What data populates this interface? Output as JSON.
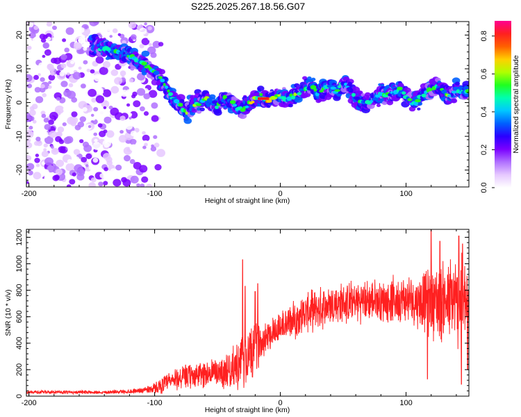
{
  "title": "S225.2025.267.18.56.G07",
  "chart_data": [
    {
      "type": "heatmap",
      "xlabel": "Height of straight line (km)",
      "ylabel": "Frequency (Hz)",
      "xlim": [
        -202,
        150
      ],
      "ylim": [
        -25,
        24
      ],
      "xticks": [
        -200,
        -100,
        0,
        100
      ],
      "yticks": [
        -20,
        -10,
        0,
        10,
        20
      ],
      "colorbar": {
        "label": "Normalized spectral amplitude",
        "range": [
          0,
          0.88
        ],
        "ticks": [
          "0.0",
          "0.2",
          "0.4",
          "0.6",
          "0.8"
        ],
        "colors": [
          "#ffffff",
          "#e6c8ff",
          "#b070ff",
          "#7a00ff",
          "#2a00ff",
          "#0060ff",
          "#00c8ff",
          "#00ffb0",
          "#20ff20",
          "#b0ff00",
          "#ffd000",
          "#ff6000",
          "#ff2020",
          "#ff0090"
        ]
      },
      "ridge": {
        "x": [
          -150,
          -140,
          -130,
          -120,
          -110,
          -100,
          -95,
          -90,
          -85,
          -80,
          -75,
          -70,
          -65,
          -60,
          -55,
          -50,
          -45,
          -40,
          -35,
          -30,
          -25,
          -20,
          -15,
          -10,
          -5,
          0,
          5,
          10,
          15,
          20,
          25,
          30,
          35,
          40,
          45,
          50,
          55,
          60,
          65,
          70,
          75,
          80,
          85,
          90,
          95,
          100,
          105,
          110,
          115,
          120,
          125,
          130,
          135,
          140,
          145,
          150
        ],
        "y": [
          17,
          16,
          15,
          14,
          12,
          9,
          7,
          4,
          1,
          -1,
          -3,
          -1,
          0,
          1,
          0,
          -1,
          1,
          0,
          -1,
          -2,
          0,
          1,
          2,
          1,
          1,
          2,
          1,
          2,
          3,
          4,
          5,
          3,
          4,
          5,
          3,
          6,
          4,
          1,
          0,
          0,
          1,
          3,
          2,
          3,
          4,
          2,
          0,
          1,
          3,
          4,
          5,
          3,
          2,
          4,
          3,
          4
        ]
      },
      "noise_region": {
        "x_from": -202,
        "x_to": -95,
        "y_from": -25,
        "y_to": 24
      }
    },
    {
      "type": "line",
      "xlabel": "Height of straight line (km)",
      "ylabel": "SNR (10 * v/v)",
      "xlim": [
        -202,
        150
      ],
      "ylim": [
        0,
        1260
      ],
      "xticks": [
        -200,
        -100,
        0,
        100
      ],
      "yticks": [
        0,
        200,
        400,
        600,
        800,
        1000,
        1200
      ],
      "line_color": "#ff2020",
      "series": [
        {
          "x": [
            -200,
            -180,
            -160,
            -140,
            -120,
            -110,
            -100,
            -90,
            -80,
            -70,
            -60,
            -50,
            -40,
            -30,
            -25,
            -20,
            -15,
            -10,
            0,
            10,
            20,
            30,
            40,
            50,
            60,
            70,
            80,
            90,
            100,
            110,
            120,
            130,
            140,
            150
          ],
          "mean": [
            30,
            30,
            30,
            30,
            35,
            45,
            60,
            100,
            140,
            150,
            170,
            180,
            200,
            250,
            300,
            360,
            420,
            470,
            520,
            570,
            630,
            660,
            690,
            700,
            710,
            720,
            720,
            730,
            730,
            720,
            720,
            720,
            700,
            680
          ],
          "amplitude": [
            12,
            12,
            12,
            12,
            15,
            20,
            40,
            70,
            90,
            90,
            100,
            110,
            130,
            200,
            220,
            180,
            130,
            120,
            120,
            130,
            140,
            150,
            150,
            150,
            150,
            150,
            150,
            160,
            170,
            190,
            260,
            300,
            340,
            360
          ],
          "peaks": [
            [
              -30,
              1030
            ],
            [
              -28,
              830
            ],
            [
              -18,
              850
            ],
            [
              -20,
              790
            ],
            [
              120,
              1260
            ],
            [
              127,
              1170
            ],
            [
              142,
              1210
            ],
            [
              145,
              1150
            ],
            [
              117,
              130
            ],
            [
              144,
              90
            ],
            [
              149,
              200
            ]
          ]
        }
      ]
    }
  ]
}
